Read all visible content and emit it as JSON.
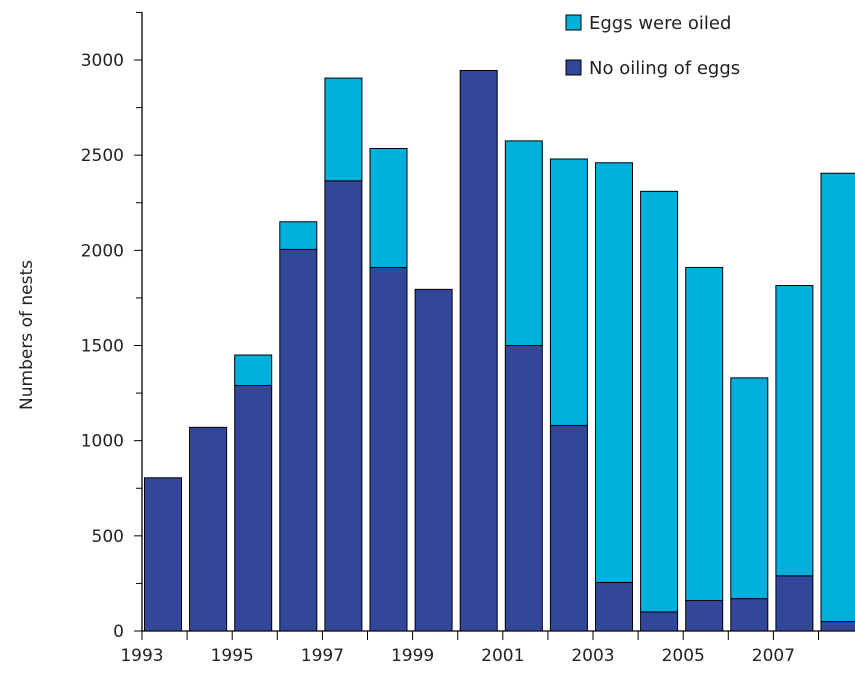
{
  "chart_data": {
    "type": "bar",
    "stacked": true,
    "title": "",
    "xlabel": "",
    "ylabel": "Numbers of nests",
    "ylim": [
      0,
      3000
    ],
    "yticks": [
      0,
      500,
      1000,
      1500,
      2000,
      2500,
      3000
    ],
    "categories": [
      1993,
      1994,
      1995,
      1996,
      1997,
      1998,
      1999,
      2000,
      2001,
      2002,
      2003,
      2004,
      2005,
      2006,
      2007,
      2008
    ],
    "xtick_labels": [
      "1993",
      "",
      "1995",
      "",
      "1997",
      "",
      "1999",
      "",
      "2001",
      "",
      "2003",
      "",
      "2005",
      "",
      "2007",
      ""
    ],
    "series": [
      {
        "name": "No oiling of eggs",
        "color": "#33479a",
        "values": [
          805,
          1070,
          1290,
          2005,
          2365,
          1910,
          1795,
          2945,
          1500,
          1080,
          255,
          100,
          160,
          170,
          290,
          50
        ]
      },
      {
        "name": "Eggs were oiled",
        "color": "#00b0dc",
        "values": [
          0,
          0,
          160,
          145,
          540,
          625,
          0,
          0,
          1075,
          1400,
          2205,
          2210,
          1750,
          1160,
          1525,
          2355
        ]
      }
    ],
    "legend": {
      "position": "top-right",
      "entries": [
        "Eggs were oiled",
        "No oiling of eggs"
      ]
    },
    "grid": false
  }
}
